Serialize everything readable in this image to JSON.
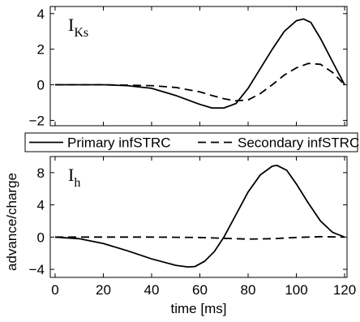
{
  "chart_data": [
    {
      "type": "line",
      "title": "",
      "panel_label_main": "I",
      "panel_label_sub": "Ks",
      "xlabel": "",
      "ylabel": "",
      "xlim": [
        -2,
        121
      ],
      "ylim": [
        -2.3,
        4.4
      ],
      "xticks": [
        0,
        20,
        40,
        60,
        80,
        100,
        120
      ],
      "yticks": [
        -2,
        0,
        2,
        4
      ],
      "ytick_labels": [
        "−2",
        "0",
        "2",
        "4"
      ],
      "show_x_tick_labels": false,
      "grid": false,
      "series": [
        {
          "name": "Primary infSTRC",
          "color": "#000000",
          "dash": "solid",
          "x": [
            0,
            10,
            20,
            30,
            40,
            50,
            60,
            65,
            70,
            75,
            80,
            85,
            90,
            95,
            100,
            103,
            106,
            110,
            115,
            120
          ],
          "y": [
            0.0,
            0.0,
            0.0,
            -0.05,
            -0.2,
            -0.6,
            -1.1,
            -1.3,
            -1.3,
            -1.05,
            -0.2,
            0.9,
            2.0,
            3.0,
            3.6,
            3.7,
            3.5,
            2.6,
            1.3,
            0.0
          ]
        },
        {
          "name": "Secondary infSTRC",
          "color": "#000000",
          "dash": "dashed",
          "x": [
            0,
            20,
            40,
            50,
            60,
            65,
            70,
            75,
            80,
            85,
            90,
            95,
            100,
            105,
            110,
            115,
            120
          ],
          "y": [
            0.0,
            0.0,
            -0.05,
            -0.15,
            -0.4,
            -0.6,
            -0.78,
            -0.9,
            -0.85,
            -0.5,
            0.0,
            0.55,
            0.95,
            1.2,
            1.15,
            0.7,
            0.0
          ]
        }
      ]
    },
    {
      "type": "line",
      "title": "",
      "panel_label_main": "I",
      "panel_label_sub": "h",
      "xlabel": "time [ms]",
      "ylabel": "advance/charge",
      "xlim": [
        -2,
        121
      ],
      "ylim": [
        -5,
        10
      ],
      "xticks": [
        0,
        20,
        40,
        60,
        80,
        100,
        120
      ],
      "yticks": [
        -4,
        0,
        4,
        8
      ],
      "ytick_labels": [
        "−4",
        "0",
        "4",
        "8"
      ],
      "show_x_tick_labels": true,
      "grid": false,
      "series": [
        {
          "name": "Primary infSTRC",
          "color": "#000000",
          "dash": "solid",
          "x": [
            0,
            10,
            20,
            30,
            40,
            50,
            55,
            58,
            62,
            66,
            70,
            75,
            80,
            85,
            90,
            92,
            96,
            100,
            105,
            110,
            115,
            120
          ],
          "y": [
            0.0,
            -0.2,
            -0.8,
            -1.7,
            -2.7,
            -3.5,
            -3.7,
            -3.65,
            -3.0,
            -1.8,
            0.0,
            2.8,
            5.6,
            7.7,
            8.8,
            8.9,
            8.3,
            6.6,
            4.2,
            2.0,
            0.6,
            0.0
          ]
        },
        {
          "name": "Secondary infSTRC",
          "color": "#000000",
          "dash": "dashed",
          "x": [
            0,
            20,
            40,
            60,
            70,
            80,
            90,
            100,
            110,
            120
          ],
          "y": [
            0.0,
            0.0,
            0.0,
            -0.05,
            -0.15,
            -0.25,
            -0.2,
            -0.05,
            0.05,
            0.0
          ]
        }
      ]
    }
  ],
  "legend": {
    "placement": "between-panels",
    "items": [
      {
        "label": "Primary infSTRC",
        "dash": "solid"
      },
      {
        "label": "Secondary infSTRC",
        "dash": "dashed"
      }
    ]
  }
}
